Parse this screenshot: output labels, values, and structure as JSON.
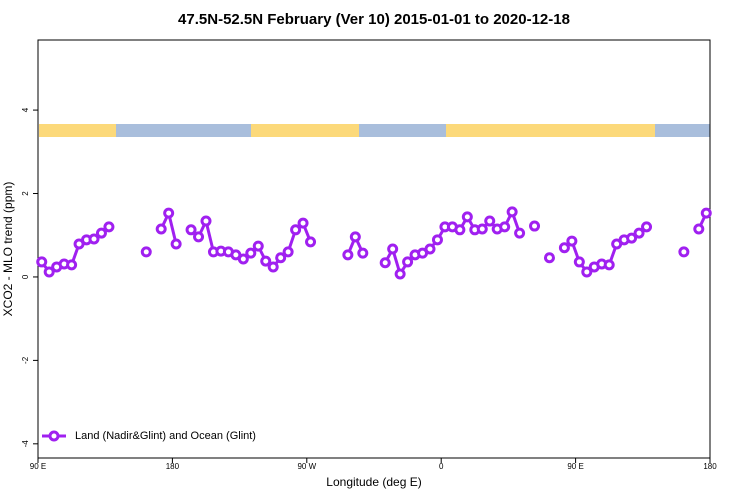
{
  "chart_data": {
    "type": "line",
    "title": "47.5N-52.5N February (Ver 10)   2015-01-01 to 2020-12-18",
    "x_label": "Longitude (deg E)",
    "y_label": "XCO2 - MLO trend (ppm)",
    "x": [
      92.5,
      97.5,
      102.5,
      107.5,
      112.5,
      117.5,
      122.5,
      127.5,
      132.5,
      137.5,
      142.5,
      147.5,
      152.5,
      157.5,
      162.5,
      167.5,
      172.5,
      177.5,
      182.5,
      187.5,
      192.5,
      197.5,
      202.5,
      207.5,
      212.5,
      217.5,
      222.5,
      227.5,
      232.5,
      237.5,
      242.5,
      247.5,
      252.5,
      257.5,
      262.5,
      267.5,
      272.5,
      277.5,
      282.5,
      287.5,
      292.5,
      297.5,
      302.5,
      307.5,
      312.5,
      317.5,
      322.5,
      327.5,
      332.5,
      337.5,
      342.5,
      347.5,
      352.5,
      357.5,
      362.5,
      367.5,
      372.5,
      377.5,
      382.5,
      387.5,
      392.5,
      397.5,
      402.5,
      407.5,
      412.5,
      417.5,
      422.5,
      427.5,
      432.5,
      437.5,
      442.5,
      447.5,
      452.5,
      457.5,
      462.5,
      467.5,
      472.5,
      477.5,
      482.5,
      487.5,
      492.5,
      497.5,
      502.5,
      507.5,
      512.5,
      517.5,
      522.5,
      527.5,
      532.5,
      537.5
    ],
    "series": [
      {
        "name": "Land (Nadir&Glint) and Ocean (Glint)",
        "color": "#a020f0",
        "values": [
          0.36,
          0.12,
          0.24,
          0.31,
          0.29,
          0.79,
          0.89,
          0.91,
          1.05,
          1.2,
          null,
          null,
          null,
          null,
          0.6,
          null,
          1.15,
          1.53,
          0.79,
          null,
          1.13,
          0.96,
          1.34,
          0.6,
          0.62,
          0.6,
          0.53,
          0.43,
          0.57,
          0.74,
          0.38,
          0.24,
          0.46,
          0.6,
          1.13,
          1.29,
          0.84,
          null,
          null,
          null,
          null,
          0.53,
          0.96,
          0.57,
          null,
          null,
          0.34,
          0.67,
          0.07,
          0.36,
          0.53,
          0.57,
          0.67,
          0.89,
          1.2,
          1.2,
          1.13,
          1.44,
          1.13,
          1.15,
          1.34,
          1.15,
          1.2,
          1.56,
          1.05,
          null,
          1.22,
          null,
          0.46,
          null,
          0.7,
          0.86,
          0.36,
          0.12,
          0.24,
          0.31,
          0.29,
          0.79,
          0.89,
          0.93,
          1.05,
          1.2,
          null,
          null,
          null,
          null,
          0.6,
          null,
          1.15,
          1.53
        ]
      }
    ],
    "xlim": [
      90,
      540
    ],
    "xticks": [
      {
        "value": 90,
        "label": "90 E"
      },
      180,
      {
        "value": 270,
        "label": "90 W"
      },
      {
        "value": 360,
        "label": "0"
      },
      {
        "value": 450,
        "label": "90 E"
      },
      {
        "value": 540,
        "label": "180"
      }
    ],
    "ylim": [
      -4.34,
      5.68
    ],
    "yticks": [
      -4,
      -2,
      0,
      2,
      4
    ],
    "legend_position": "lower left",
    "grid": false
  }
}
